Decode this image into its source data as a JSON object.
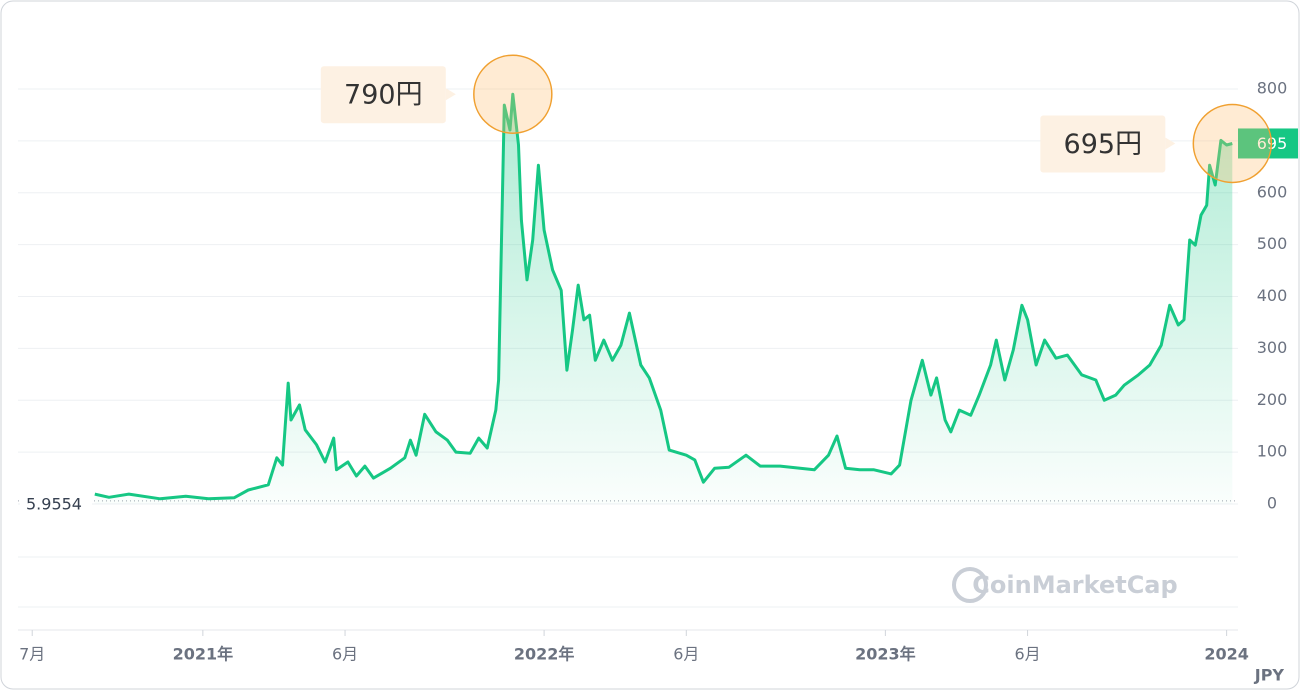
{
  "chart_data": {
    "type": "line",
    "x": [
      2.2,
      2.7,
      3.4,
      4.5,
      5.4,
      6.2,
      7.1,
      7.6,
      8.3,
      8.6,
      8.8,
      9.0,
      9.1,
      9.4,
      9.6,
      10.0,
      10.3,
      10.6,
      10.7,
      11.1,
      11.4,
      11.7,
      12.0,
      12.6,
      13.1,
      13.3,
      13.5,
      13.8,
      14.2,
      14.6,
      14.9,
      15.4,
      15.7,
      16.0,
      16.3,
      16.4,
      16.6,
      16.8,
      16.9,
      17.1,
      17.2,
      17.4,
      17.6,
      17.8,
      18.0,
      18.3,
      18.6,
      18.8,
      19.0,
      19.2,
      19.4,
      19.6,
      19.8,
      20.1,
      20.4,
      20.7,
      21.0,
      21.4,
      21.7,
      22.1,
      22.4,
      23.0,
      23.3,
      23.6,
      24.0,
      24.5,
      25.1,
      25.6,
      26.3,
      27.0,
      27.5,
      28.0,
      28.3,
      28.6,
      29.1,
      29.6,
      30.2,
      30.5,
      30.9,
      31.3,
      31.6,
      31.8,
      32.1,
      32.3,
      32.6,
      33.0,
      33.3,
      33.7,
      33.9,
      34.2,
      34.5,
      34.8,
      35.0,
      35.3,
      35.6,
      36.0,
      36.4,
      36.9,
      37.4,
      37.7,
      38.1,
      38.4,
      38.9,
      39.3,
      39.7,
      40.0,
      40.3,
      40.5,
      40.7,
      40.9,
      41.1,
      41.3,
      41.4,
      41.6,
      41.8,
      42.0,
      42.2
    ],
    "values": [
      19,
      13,
      19,
      10,
      15,
      10,
      12,
      27,
      37,
      89,
      75,
      233,
      162,
      191,
      143,
      114,
      81,
      127,
      66,
      81,
      54,
      73,
      50,
      69,
      89,
      123,
      94,
      173,
      139,
      123,
      100,
      98,
      127,
      108,
      181,
      239,
      769,
      721,
      790,
      692,
      547,
      432,
      509,
      653,
      528,
      451,
      412,
      258,
      335,
      422,
      355,
      364,
      277,
      316,
      277,
      306,
      368,
      268,
      243,
      181,
      104,
      94,
      85,
      42,
      69,
      71,
      94,
      73,
      73,
      69,
      66,
      94,
      131,
      69,
      66,
      66,
      58,
      75,
      200,
      277,
      210,
      243,
      162,
      139,
      181,
      171,
      210,
      268,
      316,
      239,
      297,
      383,
      355,
      268,
      316,
      281,
      287,
      249,
      239,
      200,
      210,
      229,
      249,
      268,
      306,
      383,
      345,
      355,
      509,
      499,
      557,
      576,
      653,
      615,
      701,
      692,
      695
    ],
    "color": "#16c784",
    "xlim": [
      -0.5,
      42.4
    ],
    "xticks": [
      {
        "value": 0,
        "label": "7月"
      },
      {
        "value": 6,
        "label": "2021年"
      },
      {
        "value": 11,
        "label": "6月"
      },
      {
        "value": 18,
        "label": "2022年"
      },
      {
        "value": 23,
        "label": "6月"
      },
      {
        "value": 30,
        "label": "2023年"
      },
      {
        "value": 35,
        "label": "6月"
      },
      {
        "value": 42,
        "label": "2024"
      }
    ],
    "ylim": [
      0,
      800
    ],
    "yticks": [
      0,
      100,
      200,
      300,
      400,
      500,
      600,
      700,
      800
    ],
    "grid": true,
    "start_value": 5.9554,
    "last_price": 695,
    "currency": "JPY",
    "watermark": "CoinMarketCap",
    "annotations": [
      {
        "x": 16.9,
        "value": 790,
        "label": "790円"
      },
      {
        "x": 42.2,
        "value": 695,
        "label": "695円"
      }
    ]
  }
}
